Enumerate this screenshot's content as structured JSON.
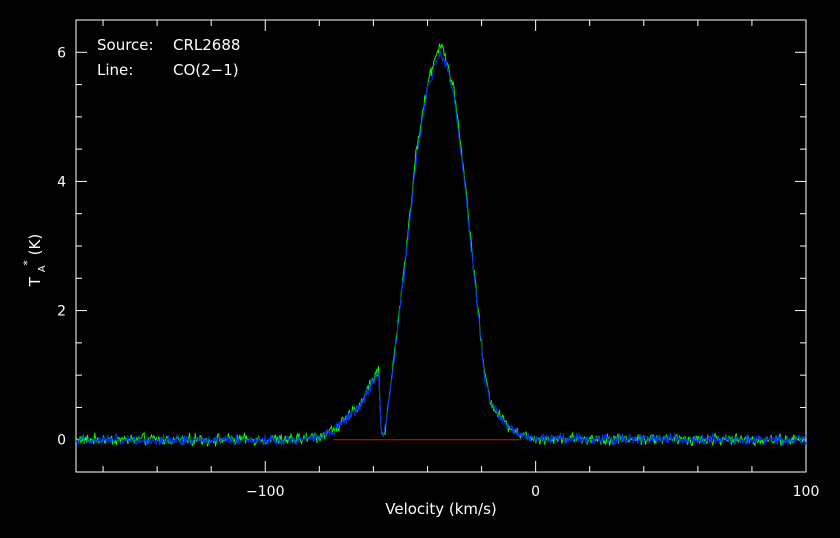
{
  "chart_data": {
    "type": "line",
    "xlabel": "Velocity (km/s)",
    "ylabel": {
      "main": "T",
      "sub": "A",
      "sup": "*",
      "unit": " (K)"
    },
    "xlim": [
      -170,
      100
    ],
    "ylim": [
      -0.5,
      6.5
    ],
    "x_ticks": [
      {
        "value": -100,
        "label": "−100"
      },
      {
        "value": 0,
        "label": "0"
      },
      {
        "value": 100,
        "label": "100"
      }
    ],
    "y_ticks": [
      {
        "value": 0,
        "label": "0"
      },
      {
        "value": 2,
        "label": "2"
      },
      {
        "value": 4,
        "label": "4"
      },
      {
        "value": 6,
        "label": "6"
      }
    ],
    "x_minor_step": 20,
    "y_minor_step": 0.5,
    "annotations": [
      {
        "key": "Source:",
        "value": "CRL2688"
      },
      {
        "key": "Line:",
        "value": "CO(2−1)"
      }
    ],
    "series": [
      {
        "color": "#00ff00",
        "noise": 0.055,
        "x": [
          -170,
          -90,
          -80,
          -75,
          -70,
          -65,
          -60,
          -58,
          -57.5,
          -57,
          -56,
          -55,
          -52,
          -48,
          -44,
          -40,
          -37,
          -35,
          -33,
          -30,
          -27,
          -24,
          -21,
          -19,
          -17,
          -14,
          -10,
          -6,
          -3,
          0,
          100
        ],
        "y": [
          0,
          0,
          0.05,
          0.15,
          0.32,
          0.55,
          0.95,
          1.08,
          0.55,
          0.05,
          0.1,
          0.35,
          1.4,
          2.9,
          4.5,
          5.5,
          5.95,
          6.15,
          5.9,
          5.35,
          4.35,
          3.1,
          1.9,
          1.05,
          0.65,
          0.4,
          0.22,
          0.1,
          0.05,
          0.02,
          0
        ]
      },
      {
        "color": "#0033ff",
        "noise": 0.05,
        "x": [
          -170,
          -90,
          -80,
          -75,
          -70,
          -65,
          -60,
          -58,
          -57.5,
          -57,
          -56,
          -55,
          -52,
          -48,
          -44,
          -40,
          -37,
          -35,
          -33,
          -30,
          -27,
          -24,
          -21,
          -19,
          -17,
          -14,
          -10,
          -6,
          -3,
          0,
          100
        ],
        "y": [
          0,
          0,
          0.04,
          0.13,
          0.3,
          0.52,
          0.9,
          1.02,
          0.5,
          0.03,
          0.08,
          0.32,
          1.35,
          2.8,
          4.4,
          5.4,
          5.85,
          5.98,
          5.8,
          5.25,
          4.25,
          3.0,
          1.85,
          1.0,
          0.62,
          0.38,
          0.2,
          0.09,
          0.04,
          0.02,
          0
        ]
      }
    ],
    "baseline": {
      "color": "#ff0000",
      "y": 0,
      "x_start": -75,
      "x_end": -5
    }
  }
}
